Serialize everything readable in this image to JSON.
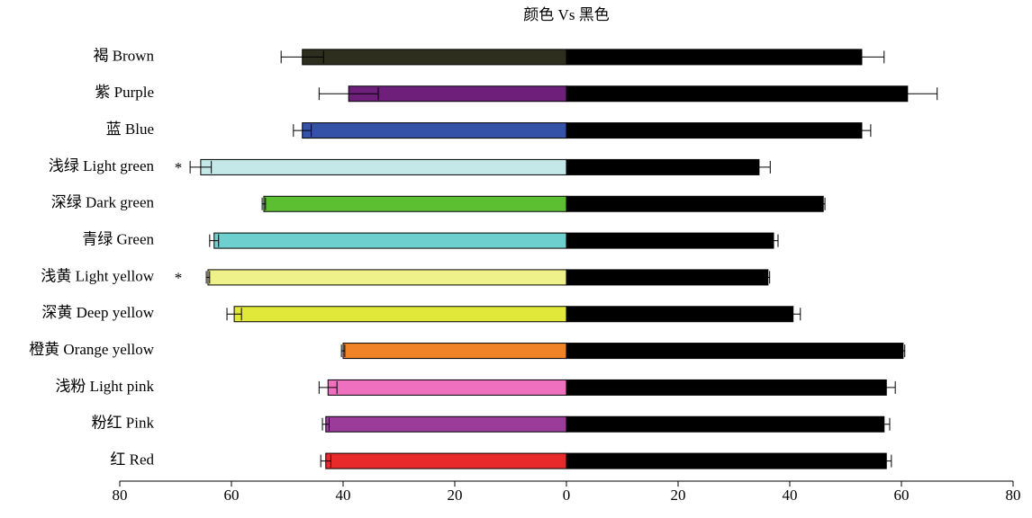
{
  "chart_data": {
    "type": "diverging-bar",
    "title": "颜色 Vs 黑色",
    "categories": [
      "褐 Brown",
      "紫 Purple",
      "蓝 Blue",
      "浅绿 Light green",
      "深绿 Dark green",
      "青绿 Green",
      "浅黄 Light yellow",
      "深黄 Deep yellow",
      "橙黄 Orange yellow",
      "浅粉 Light pink",
      "粉红 Pink",
      "红 Red"
    ],
    "significance": [
      null,
      null,
      null,
      "*",
      null,
      null,
      "*",
      null,
      null,
      null,
      null,
      null
    ],
    "series": [
      {
        "colors": [
          "#2e2e1f",
          "#6e1f7a",
          "#3452a8",
          "#c4e8e8",
          "#5cbf32",
          "#6ecfcf",
          "#eef08a",
          "#e2e83a",
          "#f08228",
          "#f070c0",
          "#9b3c9b",
          "#e82a2a"
        ],
        "values": [
          -47.3,
          -39.0,
          -47.3,
          -65.5,
          -54.2,
          -63.1,
          -64.2,
          -59.5,
          -40.0,
          -42.7,
          -43.1,
          -43.1
        ],
        "errors": [
          3.8,
          5.3,
          1.6,
          1.9,
          0.3,
          0.8,
          0.3,
          1.3,
          0.3,
          1.6,
          0.6,
          0.9
        ]
      },
      {
        "color": "#000000",
        "values": [
          52.9,
          61.1,
          52.9,
          34.5,
          46.0,
          37.1,
          36.1,
          40.6,
          60.3,
          57.3,
          56.9,
          57.3
        ],
        "errors": [
          4.0,
          5.3,
          1.6,
          2.0,
          0.3,
          0.8,
          0.3,
          1.3,
          0.3,
          1.6,
          1.0,
          0.9
        ]
      }
    ],
    "xlim": [
      -80,
      80
    ],
    "xticks": [
      {
        "value": -80,
        "label": "80"
      },
      {
        "value": -60,
        "label": "60"
      },
      {
        "value": -40,
        "label": "40"
      },
      {
        "value": -20,
        "label": "20"
      },
      0,
      20,
      40,
      60,
      80
    ]
  }
}
